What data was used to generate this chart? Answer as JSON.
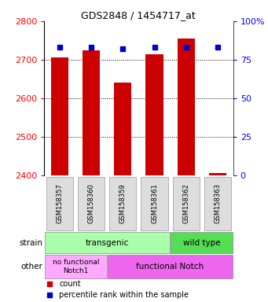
{
  "title": "GDS2848 / 1454717_at",
  "samples": [
    "GSM158357",
    "GSM158360",
    "GSM158359",
    "GSM158361",
    "GSM158362",
    "GSM158363"
  ],
  "counts": [
    2705,
    2725,
    2640,
    2715,
    2755,
    2407
  ],
  "percentiles": [
    83,
    83,
    82,
    83,
    83,
    83
  ],
  "ylim_left": [
    2400,
    2800
  ],
  "ylim_right": [
    0,
    100
  ],
  "yticks_left": [
    2400,
    2500,
    2600,
    2700,
    2800
  ],
  "yticks_right": [
    0,
    25,
    50,
    75,
    100
  ],
  "ytick_right_labels": [
    "0",
    "25",
    "50",
    "75",
    "100%"
  ],
  "bar_color": "#cc0000",
  "percentile_color": "#0000cc",
  "base_value": 2400,
  "transgenic_color": "#aaffaa",
  "wildtype_color": "#55dd55",
  "nofunc_color": "#ffaaff",
  "func_color": "#ee66ee",
  "strain_label": "strain",
  "other_label": "other",
  "legend_count_label": "count",
  "legend_pct_label": "percentile rank within the sample",
  "xlabel_bg": "#cccccc"
}
